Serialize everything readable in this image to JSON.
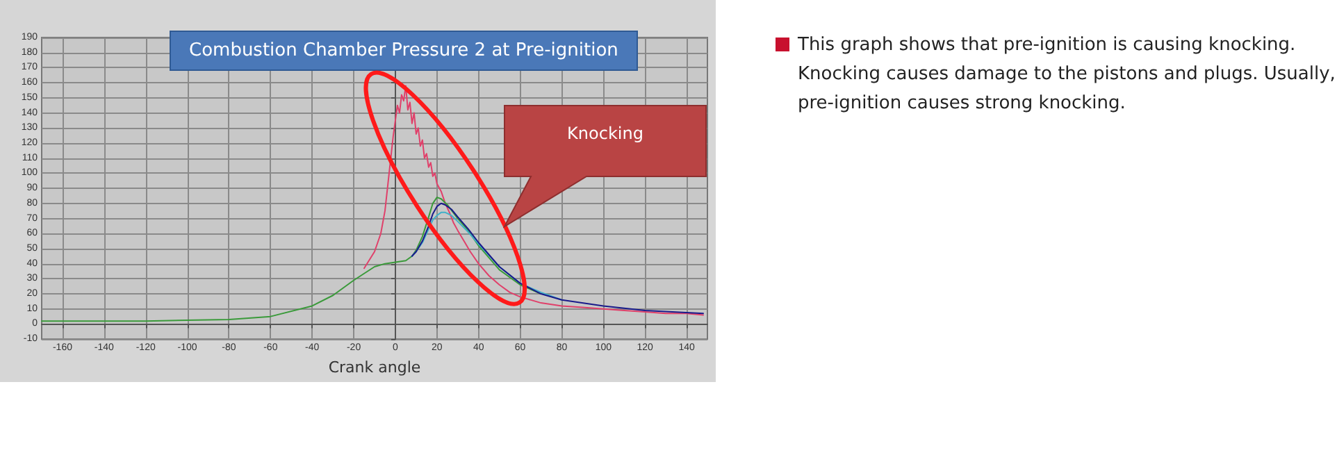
{
  "chart_data": {
    "type": "line",
    "title": "Combustion Chamber Pressure 2 at Pre-ignition",
    "xlabel": "Crank angle",
    "xlim": [
      -170,
      150
    ],
    "xticks": [
      -160,
      -140,
      -120,
      -100,
      -80,
      -60,
      -40,
      -20,
      0,
      20,
      40,
      60,
      80,
      100,
      120,
      140
    ],
    "ylim": [
      -10,
      190
    ],
    "yticks": [
      -10,
      0,
      10,
      20,
      30,
      40,
      50,
      60,
      70,
      80,
      90,
      100,
      110,
      120,
      130,
      140,
      150,
      160,
      170,
      180,
      190
    ],
    "grid": true,
    "marker": "none",
    "line_style": "solid",
    "annotations": [
      "Knocking",
      "This graph shows that pre-ignition is causing knocking. Knocking causes damage to the pistons and plugs. Usually, pre-ignition causes strong knocking."
    ],
    "series": [
      {
        "color": "#e0406a",
        "x": [
          -15,
          -10,
          -7,
          -5,
          -3,
          -1,
          0,
          1,
          2,
          3,
          4,
          5,
          6,
          7,
          8,
          9,
          10,
          11,
          12,
          13,
          14,
          15,
          16,
          17,
          18,
          19,
          20,
          22,
          24,
          26,
          28,
          30,
          33,
          36,
          40,
          45,
          50,
          55,
          60,
          70,
          80,
          90,
          100,
          110,
          120,
          130,
          140,
          148
        ],
        "values": [
          37,
          48,
          60,
          75,
          100,
          125,
          135,
          145,
          140,
          152,
          148,
          158,
          142,
          147,
          133,
          140,
          126,
          130,
          118,
          122,
          110,
          113,
          104,
          107,
          98,
          100,
          93,
          88,
          80,
          74,
          67,
          62,
          55,
          48,
          40,
          32,
          26,
          21,
          18,
          14,
          12,
          11,
          10,
          9,
          8,
          7,
          7,
          6
        ]
      },
      {
        "color": "#3a9a3a",
        "x": [
          -170,
          -120,
          -80,
          -60,
          -40,
          -30,
          -20,
          -10,
          -5,
          0,
          5,
          8,
          10,
          13,
          16,
          18,
          20,
          22,
          25,
          30,
          35,
          40,
          50,
          60,
          70
        ],
        "values": [
          2,
          2,
          3,
          5,
          12,
          19,
          29,
          38,
          40,
          41,
          42,
          45,
          49,
          58,
          71,
          80,
          84,
          83,
          79,
          70,
          62,
          52,
          36,
          26,
          20
        ]
      },
      {
        "color": "#40b0c8",
        "x": [
          8,
          10,
          13,
          16,
          18,
          20,
          22,
          24,
          27,
          30,
          35,
          40,
          50,
          60,
          70,
          80
        ],
        "values": [
          45,
          48,
          54,
          63,
          69,
          72,
          74,
          74,
          72,
          68,
          61,
          53,
          38,
          27,
          21,
          16
        ]
      },
      {
        "color": "#1a1a8a",
        "x": [
          8,
          10,
          13,
          16,
          18,
          20,
          22,
          24,
          27,
          30,
          35,
          40,
          50,
          60,
          70,
          80,
          100,
          120,
          148
        ],
        "values": [
          45,
          48,
          55,
          65,
          73,
          78,
          80,
          79,
          76,
          71,
          63,
          54,
          38,
          27,
          20,
          16,
          12,
          9,
          7
        ]
      }
    ]
  }
}
